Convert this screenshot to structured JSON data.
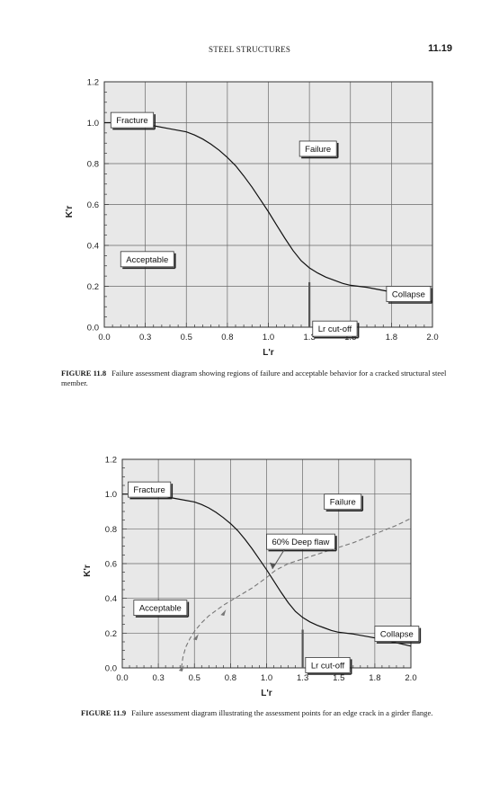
{
  "running_head": "STEEL STRUCTURES",
  "page_number": "11.19",
  "figures": [
    {
      "label": "FIGURE 11.8",
      "caption": "Failure assessment diagram showing regions of failure and acceptable behavior for a cracked structural steel member."
    },
    {
      "label": "FIGURE 11.9",
      "caption": "Failure assessment diagram illustrating the assessment points for an edge crack in a girder flange."
    }
  ],
  "chart_data": [
    {
      "type": "line",
      "xlabel": "L'r",
      "ylabel": "K'r",
      "xlim": [
        0.0,
        2.0
      ],
      "ylim": [
        0.0,
        1.2
      ],
      "xticks": [
        "0.0",
        "0.3",
        "0.5",
        "0.8",
        "1.0",
        "1.3",
        "1.5",
        "1.8",
        "2.0"
      ],
      "yticks": [
        "0.0",
        "0.2",
        "0.4",
        "0.6",
        "0.8",
        "1.0",
        "1.2"
      ],
      "grid": true,
      "series": [
        {
          "x": [
            0.0,
            0.1,
            0.2,
            0.3,
            0.4,
            0.5,
            0.55,
            0.6,
            0.65,
            0.7,
            0.75,
            0.8,
            0.85,
            0.9,
            0.95,
            1.0,
            1.05,
            1.1,
            1.15,
            1.2,
            1.25,
            1.3,
            1.35,
            1.4,
            1.45,
            1.5,
            1.6,
            1.7,
            1.8,
            1.9,
            2.0
          ],
          "y": [
            1.0,
            1.0,
            0.995,
            0.985,
            0.97,
            0.955,
            0.94,
            0.92,
            0.895,
            0.865,
            0.83,
            0.79,
            0.74,
            0.685,
            0.625,
            0.565,
            0.5,
            0.435,
            0.375,
            0.325,
            0.29,
            0.265,
            0.245,
            0.23,
            0.215,
            0.205,
            0.195,
            0.18,
            0.165,
            0.145,
            0.125
          ]
        }
      ],
      "cutoff": {
        "x": 1.25,
        "y_top": 0.22
      },
      "annotations": [
        {
          "text": "Fracture",
          "x": 0.04,
          "y": 1.05
        },
        {
          "text": "Failure",
          "x": 1.19,
          "y": 0.91
        },
        {
          "text": "Acceptable",
          "x": 0.1,
          "y": 0.37
        },
        {
          "text": "Collapse",
          "x": 1.72,
          "y": 0.2
        },
        {
          "text": "Lr cut-off",
          "x": 1.27,
          "y": 0.03
        }
      ]
    },
    {
      "type": "line",
      "xlabel": "L'r",
      "ylabel": "K'r",
      "xlim": [
        0.0,
        2.0
      ],
      "ylim": [
        0.0,
        1.2
      ],
      "xticks": [
        "0.0",
        "0.3",
        "0.5",
        "0.8",
        "1.0",
        "1.3",
        "1.5",
        "1.8",
        "2.0"
      ],
      "yticks": [
        "0.0",
        "0.2",
        "0.4",
        "0.6",
        "0.8",
        "1.0",
        "1.2"
      ],
      "grid": true,
      "series": [
        {
          "x": [
            0.0,
            0.1,
            0.2,
            0.3,
            0.4,
            0.5,
            0.55,
            0.6,
            0.65,
            0.7,
            0.75,
            0.8,
            0.85,
            0.9,
            0.95,
            1.0,
            1.05,
            1.1,
            1.15,
            1.2,
            1.25,
            1.3,
            1.35,
            1.4,
            1.45,
            1.5,
            1.6,
            1.7,
            1.8,
            1.9,
            2.0
          ],
          "y": [
            1.0,
            1.0,
            0.995,
            0.985,
            0.97,
            0.955,
            0.94,
            0.92,
            0.895,
            0.865,
            0.83,
            0.79,
            0.74,
            0.685,
            0.625,
            0.565,
            0.5,
            0.435,
            0.375,
            0.325,
            0.29,
            0.265,
            0.245,
            0.23,
            0.215,
            0.205,
            0.195,
            0.18,
            0.165,
            0.145,
            0.125
          ]
        },
        {
          "style": "dashed",
          "x": [
            0.41,
            0.42,
            0.44,
            0.47,
            0.5,
            0.55,
            0.6,
            0.7,
            0.8,
            0.9,
            1.0,
            1.06,
            1.15,
            1.3,
            1.45,
            1.6,
            1.75,
            1.9,
            2.0
          ],
          "y": [
            0.0,
            0.06,
            0.12,
            0.17,
            0.21,
            0.26,
            0.3,
            0.36,
            0.41,
            0.46,
            0.52,
            0.56,
            0.6,
            0.64,
            0.68,
            0.72,
            0.77,
            0.82,
            0.86
          ]
        }
      ],
      "cutoff": {
        "x": 1.25,
        "y_top": 0.22
      },
      "assessment_points": [
        {
          "x": 0.41,
          "y": 0.0
        },
        {
          "x": 0.51,
          "y": 0.18
        },
        {
          "x": 0.7,
          "y": 0.32
        }
      ],
      "annotations": [
        {
          "text": "Fracture",
          "x": 0.04,
          "y": 1.07
        },
        {
          "text": "Failure",
          "x": 1.4,
          "y": 1.0
        },
        {
          "text": "Acceptable",
          "x": 0.08,
          "y": 0.39
        },
        {
          "text": "60% Deep flaw",
          "x": 1.0,
          "y": 0.77,
          "arrow_to": [
            1.04,
            0.57
          ]
        },
        {
          "text": "Collapse",
          "x": 1.75,
          "y": 0.24
        },
        {
          "text": "Lr cut-off",
          "x": 1.27,
          "y": 0.06
        }
      ]
    }
  ]
}
